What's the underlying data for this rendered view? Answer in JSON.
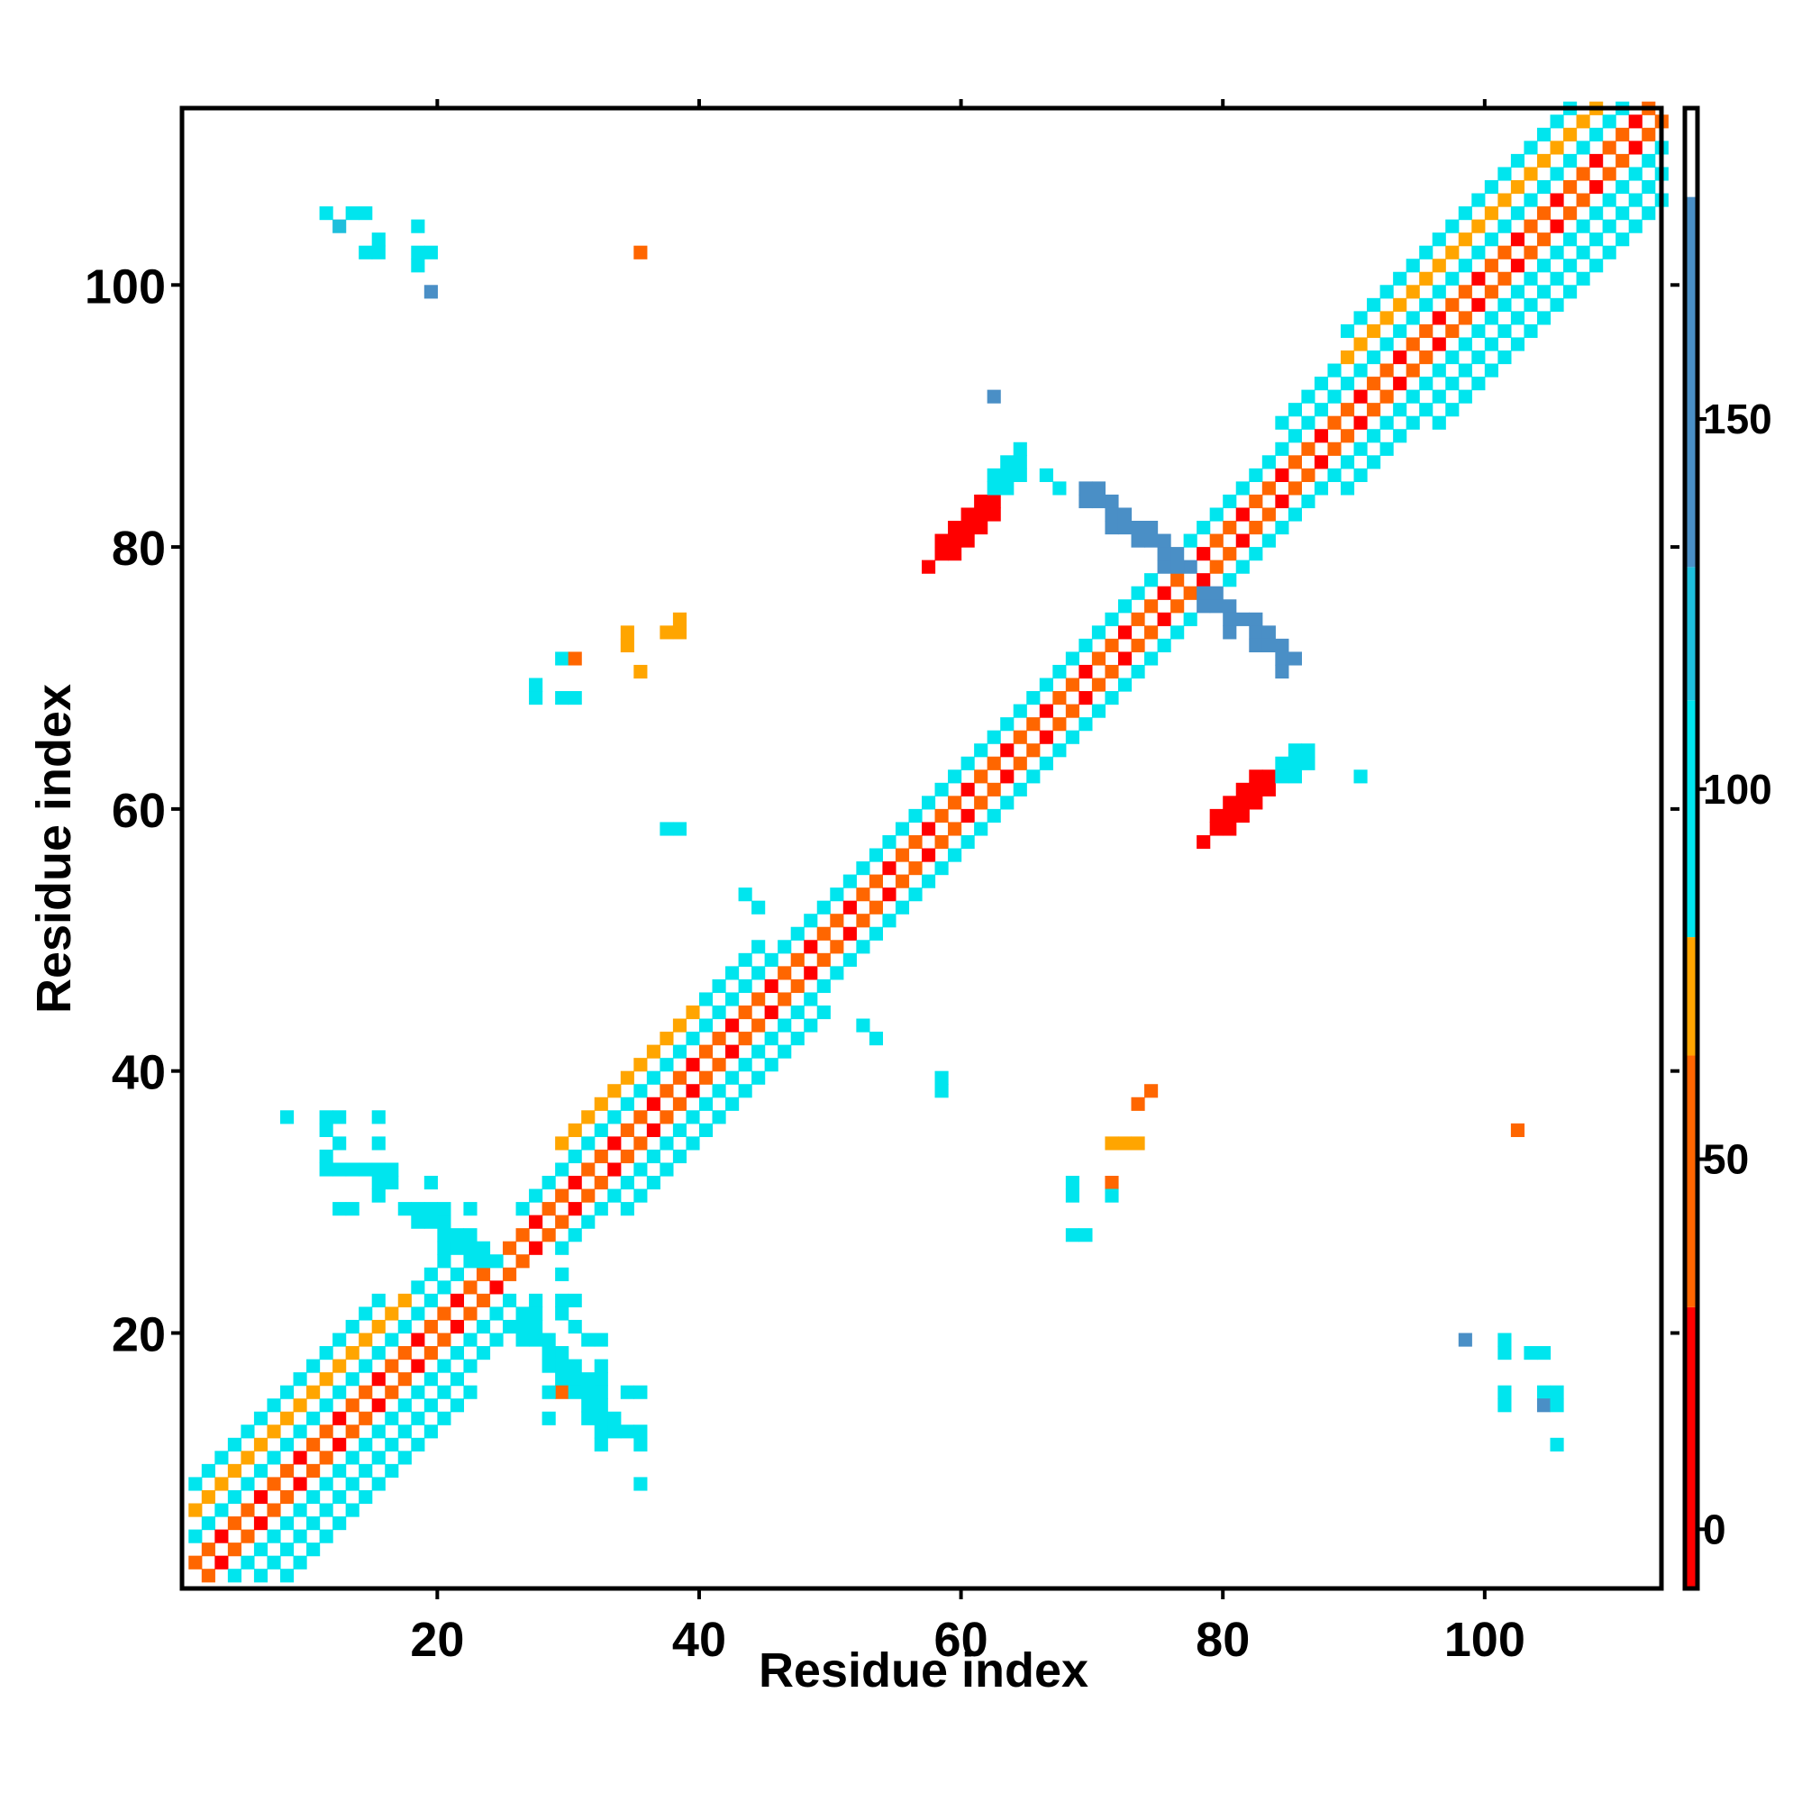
{
  "chart_data": {
    "type": "heatmap",
    "title": "",
    "xlabel": "Residue index",
    "ylabel": "Residue index",
    "xlim": [
      1,
      113
    ],
    "ylim": [
      1,
      113
    ],
    "x_ticks": [
      20,
      40,
      60,
      80,
      100
    ],
    "y_ticks": [
      20,
      40,
      60,
      80,
      100
    ],
    "colorbar": {
      "ticks": [
        0,
        50,
        100,
        150
      ],
      "range": [
        -8,
        192
      ],
      "segments": [
        {
          "from": -8,
          "to": 30,
          "color": "#ff0000"
        },
        {
          "from": 30,
          "to": 64,
          "color": "#ff6600"
        },
        {
          "from": 64,
          "to": 80,
          "color": "#ffa500"
        },
        {
          "from": 80,
          "to": 112,
          "color": "#00e5ee"
        },
        {
          "from": 112,
          "to": 130,
          "color": "#1ebfdc"
        },
        {
          "from": 130,
          "to": 180,
          "color": "#4a8fc6"
        },
        {
          "from": 180,
          "to": 192,
          "color": "#ffffff"
        }
      ]
    },
    "diagonal": {
      "segments": [
        {
          "from": 1,
          "to": 22,
          "halfwidth": 8
        },
        {
          "from": 22,
          "to": 28,
          "halfwidth": 2
        },
        {
          "from": 28,
          "to": 44,
          "halfwidth": 6
        },
        {
          "from": 44,
          "to": 88,
          "halfwidth": 3
        },
        {
          "from": 88,
          "to": 113,
          "halfwidth": 7
        }
      ]
    },
    "blobs": [
      {
        "cx": 60,
        "cy": 81,
        "rx": 4,
        "ry": 2,
        "value": 5
      },
      {
        "cx": 81,
        "cy": 60,
        "rx": 2,
        "ry": 4,
        "value": 5
      },
      {
        "cx": 63,
        "cy": 85,
        "rx": 2,
        "ry": 1,
        "value": 100
      },
      {
        "cx": 85,
        "cy": 63,
        "rx": 1,
        "ry": 2,
        "value": 100
      }
    ],
    "cross_arms": [
      {
        "x1": 69,
        "y1": 84,
        "x2": 76,
        "y2": 78,
        "value": 145
      },
      {
        "x1": 78,
        "y1": 76,
        "x2": 84,
        "y2": 71,
        "value": 145
      },
      {
        "x1": 18,
        "y1": 29,
        "x2": 23,
        "y2": 25,
        "value": 110
      },
      {
        "x1": 26,
        "y1": 20,
        "x2": 32,
        "y2": 13,
        "value": 110
      }
    ],
    "scatter_cells": [
      [
        11,
        105,
        110
      ],
      [
        12,
        104,
        120
      ],
      [
        13,
        105,
        100
      ],
      [
        14,
        105,
        100
      ],
      [
        15,
        103,
        110
      ],
      [
        14,
        102,
        100
      ],
      [
        15,
        102,
        100
      ],
      [
        18,
        104,
        110
      ],
      [
        18,
        102,
        100
      ],
      [
        19,
        102,
        100
      ],
      [
        18,
        101,
        110
      ],
      [
        19,
        99,
        145
      ],
      [
        35,
        102,
        55
      ],
      [
        62,
        91,
        145
      ],
      [
        64,
        87,
        110
      ],
      [
        66,
        85,
        110
      ],
      [
        67,
        84,
        100
      ],
      [
        29,
        71,
        100
      ],
      [
        30,
        71,
        55
      ],
      [
        34,
        73,
        70
      ],
      [
        34,
        72,
        70
      ],
      [
        35,
        70,
        70
      ],
      [
        37,
        73,
        70
      ],
      [
        38,
        73,
        70
      ],
      [
        38,
        74,
        70
      ],
      [
        27,
        69,
        100
      ],
      [
        27,
        68,
        100
      ],
      [
        29,
        68,
        100
      ],
      [
        30,
        68,
        100
      ],
      [
        37,
        58,
        110
      ],
      [
        38,
        58,
        110
      ],
      [
        43,
        53,
        110
      ],
      [
        44,
        52,
        110
      ],
      [
        52,
        43,
        110
      ],
      [
        53,
        42,
        110
      ],
      [
        58,
        39,
        110
      ],
      [
        58,
        38,
        110
      ],
      [
        74,
        38,
        55
      ],
      [
        73,
        37,
        55
      ],
      [
        71,
        34,
        70
      ],
      [
        72,
        34,
        70
      ],
      [
        73,
        34,
        70
      ],
      [
        71,
        31,
        55
      ],
      [
        71,
        30,
        100
      ],
      [
        68,
        31,
        100
      ],
      [
        68,
        30,
        100
      ],
      [
        68,
        27,
        100
      ],
      [
        69,
        27,
        100
      ],
      [
        90,
        62,
        110
      ],
      [
        102,
        35,
        55
      ],
      [
        8,
        36,
        110
      ],
      [
        11,
        36,
        110
      ],
      [
        12,
        36,
        110
      ],
      [
        15,
        36,
        110
      ],
      [
        11,
        35,
        110
      ],
      [
        12,
        34,
        110
      ],
      [
        15,
        34,
        110
      ],
      [
        11,
        33,
        110
      ],
      [
        11,
        32,
        110
      ],
      [
        12,
        32,
        110
      ],
      [
        13,
        32,
        110
      ],
      [
        14,
        32,
        110
      ],
      [
        15,
        32,
        110
      ],
      [
        16,
        32,
        110
      ],
      [
        15,
        31,
        110
      ],
      [
        16,
        31,
        110
      ],
      [
        19,
        31,
        110
      ],
      [
        15,
        30,
        110
      ],
      [
        12,
        29,
        110
      ],
      [
        13,
        29,
        110
      ],
      [
        17,
        29,
        110
      ],
      [
        19,
        29,
        110
      ],
      [
        20,
        29,
        110
      ],
      [
        29,
        24,
        110
      ],
      [
        30,
        22,
        110
      ],
      [
        27,
        21,
        110
      ],
      [
        29,
        21,
        110
      ],
      [
        30,
        20,
        100
      ],
      [
        31,
        19,
        110
      ],
      [
        32,
        19,
        110
      ],
      [
        28,
        18,
        110
      ],
      [
        29,
        18,
        110
      ],
      [
        32,
        17,
        110
      ],
      [
        29,
        16,
        110
      ],
      [
        30,
        16,
        110
      ],
      [
        31,
        16,
        110
      ],
      [
        32,
        16,
        110
      ],
      [
        28,
        15,
        110
      ],
      [
        29,
        15,
        55
      ],
      [
        32,
        15,
        110
      ],
      [
        34,
        15,
        110
      ],
      [
        35,
        15,
        110
      ],
      [
        28,
        13,
        110
      ],
      [
        32,
        13,
        110
      ],
      [
        32,
        12,
        110
      ],
      [
        33,
        12,
        110
      ],
      [
        34,
        12,
        110
      ],
      [
        35,
        12,
        110
      ],
      [
        32,
        11,
        110
      ],
      [
        35,
        11,
        110
      ],
      [
        35,
        8,
        110
      ],
      [
        98,
        19,
        145
      ],
      [
        101,
        19,
        110
      ],
      [
        101,
        18,
        110
      ],
      [
        103,
        18,
        110
      ],
      [
        104,
        18,
        110
      ],
      [
        101,
        15,
        110
      ],
      [
        104,
        15,
        110
      ],
      [
        105,
        15,
        110
      ],
      [
        101,
        14,
        110
      ],
      [
        104,
        14,
        145
      ],
      [
        105,
        14,
        110
      ],
      [
        105,
        11,
        110
      ]
    ]
  }
}
